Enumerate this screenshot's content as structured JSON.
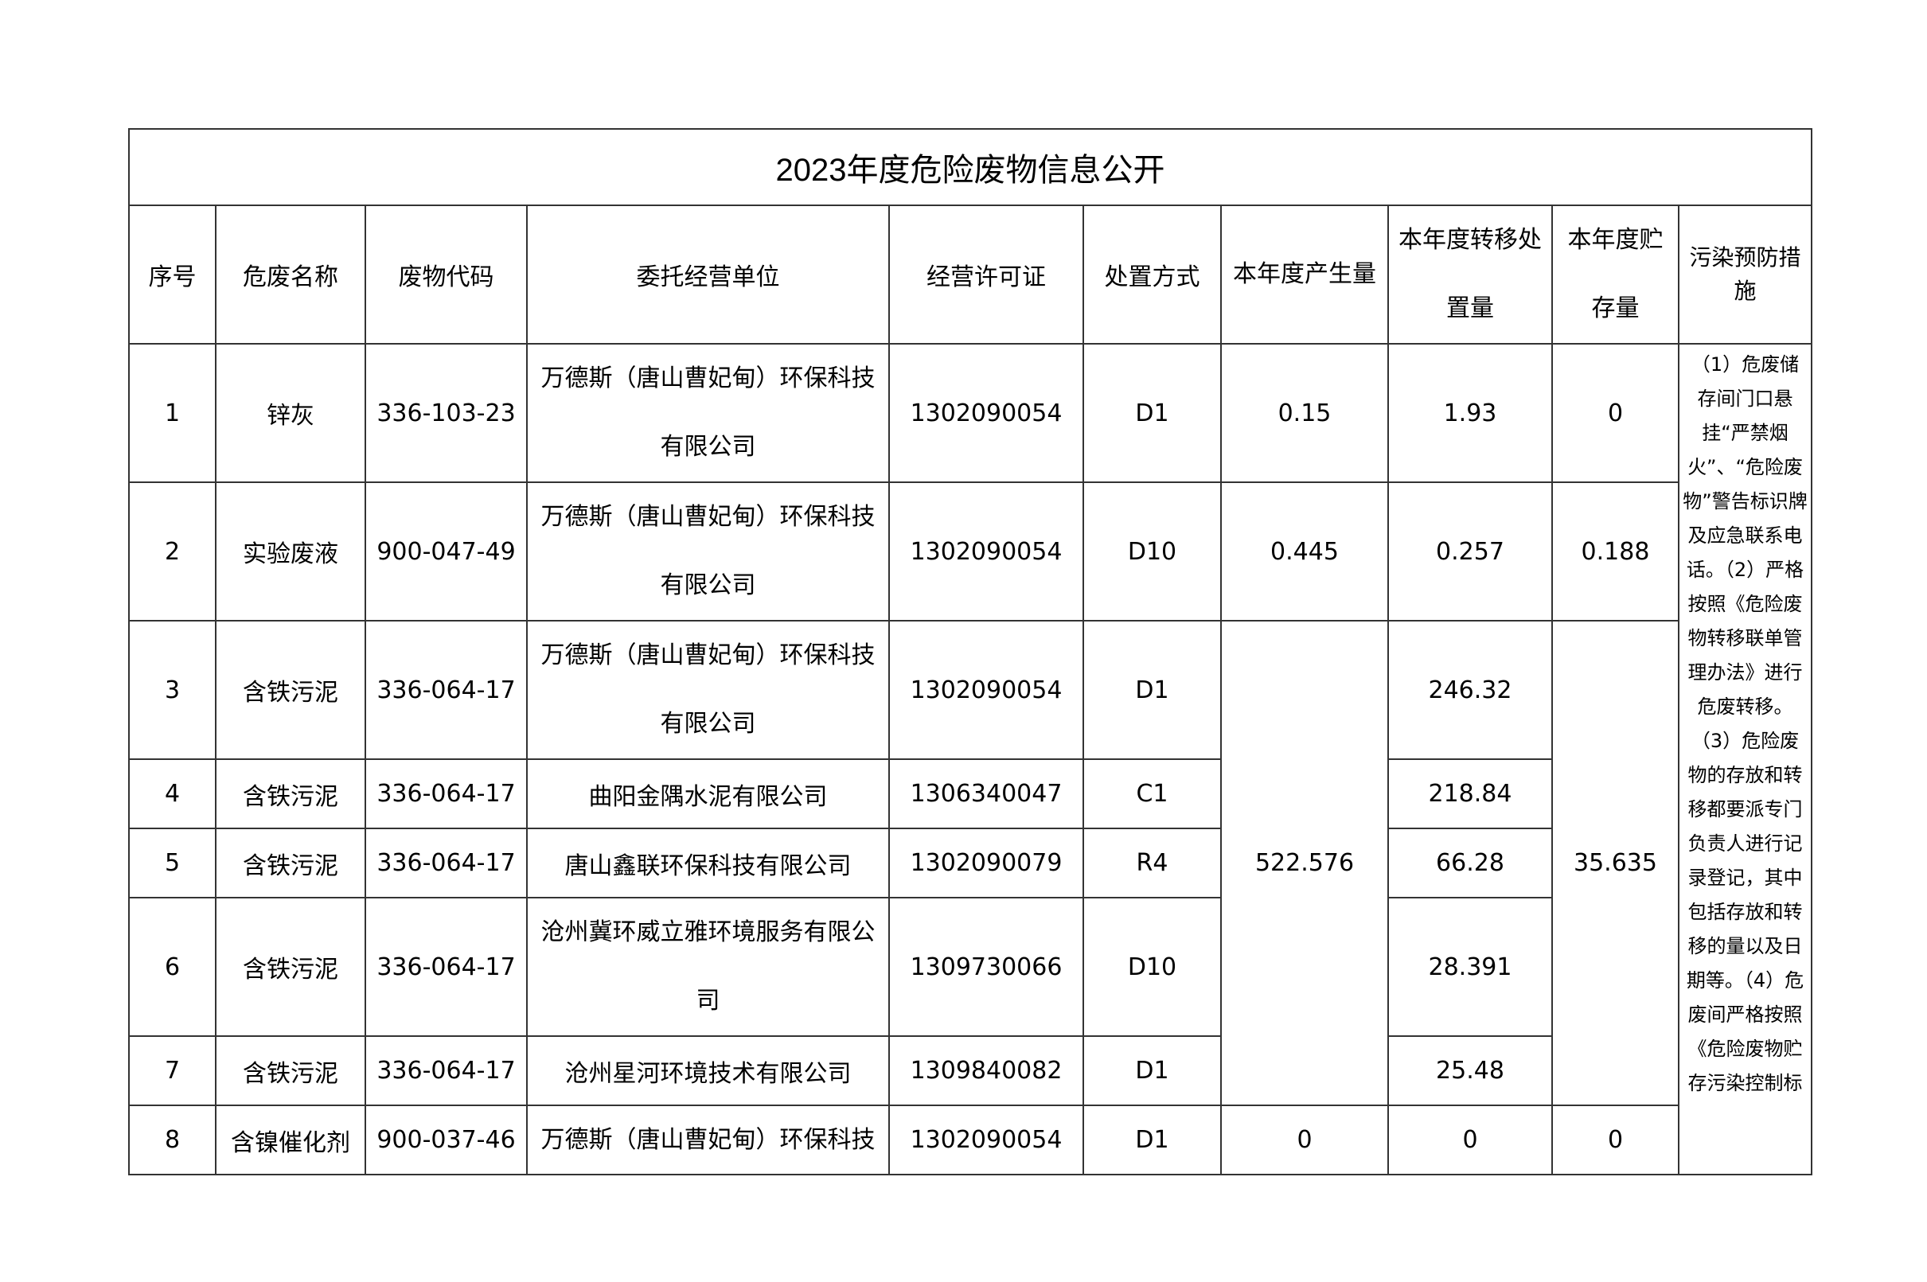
{
  "title": "2023年度危险废物信息公开",
  "headers": [
    "序号",
    "危废名称",
    "废物代码",
    "委托经营单位",
    "经营许可证",
    "处置方式",
    "本年度产生量",
    "本年度转移处置量",
    "本年度贮存量",
    "污染预防措施"
  ],
  "rows": [
    {
      "no": "1",
      "name": "锌灰",
      "code": "336-103-23",
      "unit": "万德斯（唐山曹妃甸）环保科技有限公司",
      "license": "1302090054",
      "method": "D1",
      "produced": "0.15",
      "transferred": "1.93",
      "stored": "0"
    },
    {
      "no": "2",
      "name": "实验废液",
      "code": "900-047-49",
      "unit": "万德斯（唐山曹妃甸）环保科技有限公司",
      "license": "1302090054",
      "method": "D10",
      "produced": "0.445",
      "transferred": "0.257",
      "stored": "0.188"
    },
    {
      "no": "3",
      "name": "含铁污泥",
      "code": "336-064-17",
      "unit": "万德斯（唐山曹妃甸）环保科技有限公司",
      "license": "1302090054",
      "method": "D1",
      "transferred": "246.32"
    },
    {
      "no": "4",
      "name": "含铁污泥",
      "code": "336-064-17",
      "unit": "曲阳金隅水泥有限公司",
      "license": "1306340047",
      "method": "C1",
      "transferred": "218.84"
    },
    {
      "no": "5",
      "name": "含铁污泥",
      "code": "336-064-17",
      "unit": "唐山鑫联环保科技有限公司",
      "license": "1302090079",
      "method": "R4",
      "transferred": "66.28"
    },
    {
      "no": "6",
      "name": "含铁污泥",
      "code": "336-064-17",
      "unit": "沧州冀环威立雅环境服务有限公司",
      "license": "1309730066",
      "method": "D10",
      "transferred": "28.391"
    },
    {
      "no": "7",
      "name": "含铁污泥",
      "code": "336-064-17",
      "unit": "沧州星河环境技术有限公司",
      "license": "1309840082",
      "method": "D1",
      "transferred": "25.48"
    },
    {
      "no": "8",
      "name": "含镍催化剂",
      "code": "900-037-46",
      "unit": "万德斯（唐山曹妃甸）环保科技",
      "license": "1302090054",
      "method": "D1",
      "produced": "0",
      "transferred": "0",
      "stored": "0"
    }
  ],
  "merged": {
    "produced": "522.576",
    "stored": "35.635"
  },
  "notes": "（1）危废储存间门口悬挂“严禁烟火”、“危险废物”警告标识牌及应急联系电话。（2）严格按照《危险废物转移联单管理办法》进行危废转移。 （3）危险废物的存放和转移都要派专门负责人进行记录登记，其中包括存放和转移的量以及日期等。（4）危废间严格按照《危险废物贮存污染控制标"
}
